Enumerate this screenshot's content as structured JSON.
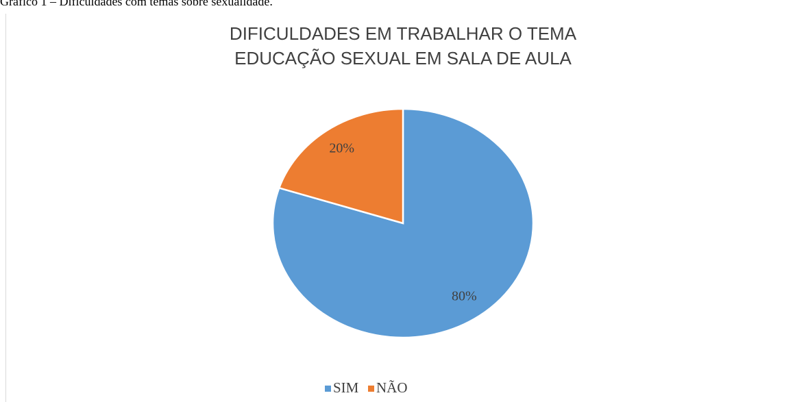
{
  "caption": "Gráfico 1 – Dificuldades com temas sobre sexualidade.",
  "chart_data": {
    "type": "pie",
    "title": [
      "DIFICULDADES EM TRABALHAR O TEMA",
      "EDUCAÇÃO SEXUAL EM SALA DE AULA"
    ],
    "categories": [
      "SIM",
      "NÃO"
    ],
    "values": [
      80,
      20
    ],
    "value_labels": [
      "80%",
      "20%"
    ],
    "colors": [
      "#5b9bd5",
      "#ed7d31"
    ],
    "legend": "bottom"
  }
}
